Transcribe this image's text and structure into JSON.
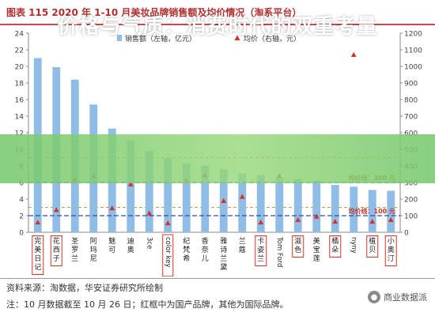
{
  "figure": {
    "title": "图表  115 2020 年 1-10 月美妆品牌销售额及均价情况（淘系平台）"
  },
  "banner": {
    "text": "价格与气质：消费时代的双重考量"
  },
  "footer": {
    "source": "资料来源：淘数据，华安证券研究所绘制",
    "note": "注：10 月数据截至 10 月 26 日；红框中为国产品牌，其他为国际品牌。"
  },
  "watermark": {
    "text": "商业数据派"
  },
  "colors": {
    "bar": "#8fbde6",
    "marker": "#d9302b",
    "refline_blue": "#2c4f9e",
    "refline_orange": "#e0962c",
    "highlight_box": "#d9302b"
  },
  "chart_data": {
    "type": "bar",
    "categories": [
      "完美日记",
      "花西子",
      "圣罗兰",
      "阿玛尼",
      "魅可",
      "迪奥",
      "3ce",
      "color key",
      "纪梵希",
      "香奈儿",
      "雅诗兰黛",
      "兰蔻",
      "卡姿兰",
      "Tom Ford",
      "滋色",
      "美宝莲",
      "橘朵",
      "nyny",
      "植贝",
      "小奥汀"
    ],
    "domestic": [
      true,
      true,
      false,
      false,
      false,
      false,
      false,
      true,
      false,
      false,
      false,
      false,
      true,
      false,
      true,
      false,
      true,
      false,
      true,
      true
    ],
    "series": [
      {
        "name": "销售额（左轴，亿元）",
        "type": "bar",
        "axis": "left",
        "values": [
          21.0,
          19.9,
          18.4,
          15.4,
          12.5,
          11.1,
          9.8,
          8.9,
          8.3,
          8.0,
          7.6,
          7.1,
          6.9,
          6.6,
          6.4,
          6.2,
          5.7,
          5.5,
          5.1,
          5.0
        ]
      },
      {
        "name": "均价（右轴，元）",
        "type": "scatter",
        "axis": "right",
        "values": [
          60,
          135,
          320,
          340,
          145,
          290,
          115,
          55,
          310,
          345,
          190,
          215,
          60,
          340,
          75,
          95,
          65,
          1070,
          65,
          75
        ]
      }
    ],
    "reference_lines": [
      {
        "label": "均价线：300 元",
        "axis": "right",
        "value": 300
      },
      {
        "label": "均价线：100 元",
        "axis": "right",
        "value": 100
      }
    ],
    "dashed_levels_right": [
      150,
      450
    ],
    "ylim_left": [
      0,
      24
    ],
    "yticks_left": [
      0,
      2,
      4,
      6,
      8,
      10,
      12,
      14,
      16,
      18,
      20,
      22,
      24
    ],
    "ylim_right": [
      0,
      1200
    ],
    "yticks_right": [
      0,
      100,
      200,
      300,
      400,
      500,
      600,
      700,
      800,
      900,
      1000,
      1100,
      1200
    ],
    "legend_position": "top-center",
    "grid": false
  }
}
